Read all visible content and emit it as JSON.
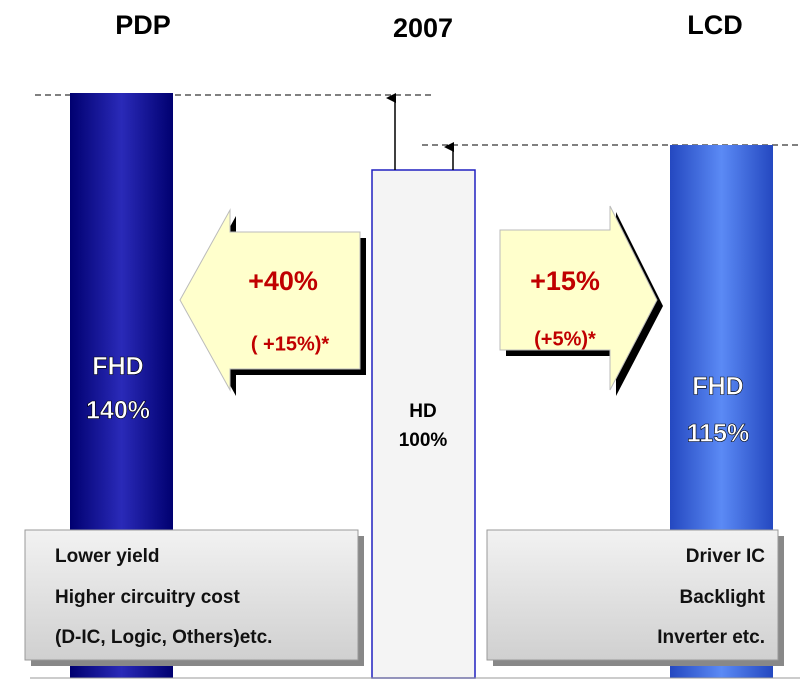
{
  "headers": {
    "left": "PDP",
    "center": "2007",
    "right": "LCD"
  },
  "bars": [
    {
      "label": "FHD",
      "value_label": "140%"
    },
    {
      "label": "HD",
      "value_label": "100%"
    },
    {
      "label": "FHD",
      "value_label": "115%"
    }
  ],
  "arrows": [
    {
      "main": "+40%",
      "sub": "( +15%)*"
    },
    {
      "main": "+15%",
      "sub": "(+5%)*"
    }
  ],
  "notes": {
    "left": [
      "Lower yield",
      "Higher circuitry cost",
      "(D-IC, Logic, Others)etc."
    ],
    "right": [
      "Driver IC",
      "Backlight",
      "Inverter etc."
    ]
  }
}
